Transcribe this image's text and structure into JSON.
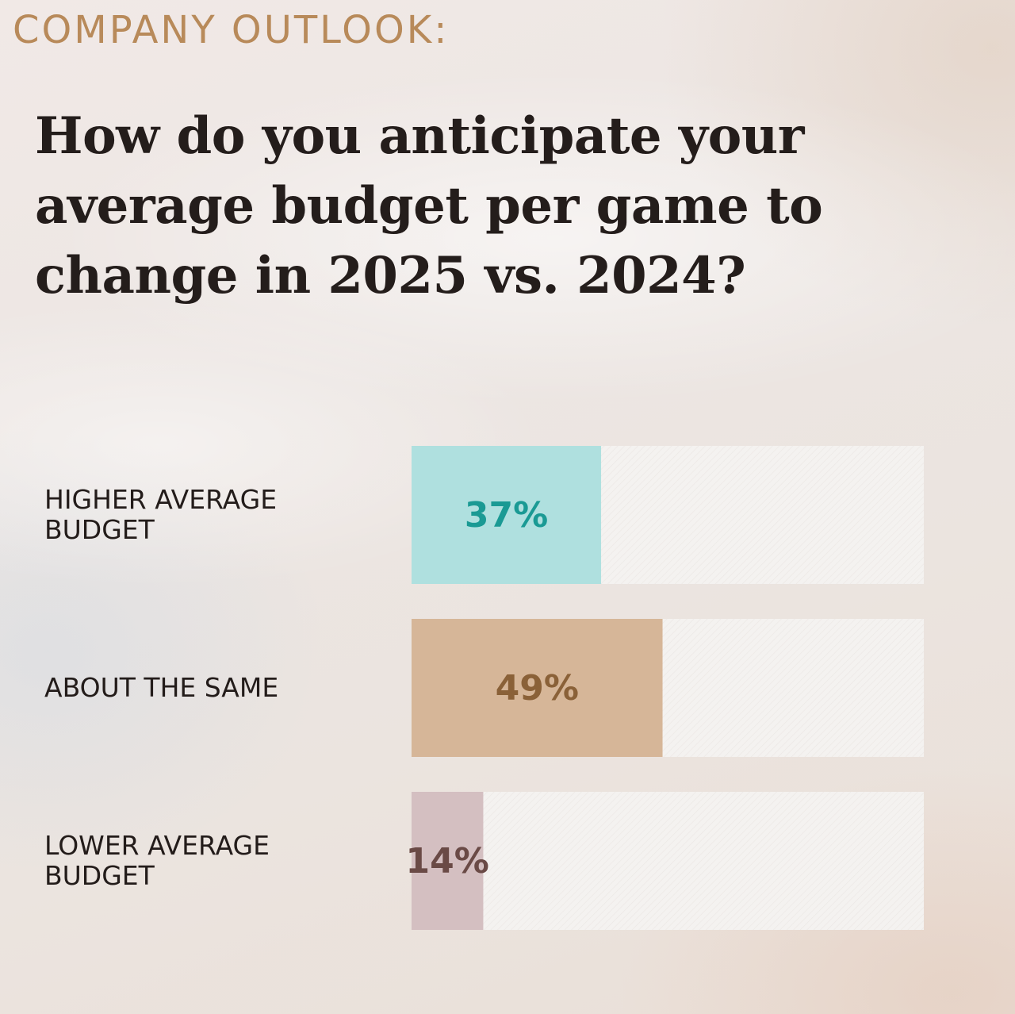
{
  "kicker": "COMPANY OUTLOOK:",
  "question_lines": [
    "How do you anticipate your",
    "average budget per game to",
    "change in 2025 vs. 2024?"
  ],
  "chart_data": {
    "type": "bar",
    "orientation": "horizontal",
    "title": "How do you anticipate your average budget per game to change in 2025 vs. 2024?",
    "categories": [
      [
        "HIGHER AVERAGE",
        "BUDGET"
      ],
      [
        "ABOUT THE SAME"
      ],
      [
        "LOWER AVERAGE",
        "BUDGET"
      ]
    ],
    "values": [
      37,
      49,
      14
    ],
    "value_labels": [
      "37%",
      "49%",
      "14%"
    ],
    "xlim": [
      0,
      100
    ],
    "grid": false,
    "legend": "none",
    "colors": {
      "fills": [
        "#afe0df",
        "#d6b698",
        "#d4bfc1"
      ],
      "labels": [
        "#1a9a94",
        "#8a6138",
        "#6a4a46"
      ],
      "track": "#f3f1ef"
    }
  }
}
